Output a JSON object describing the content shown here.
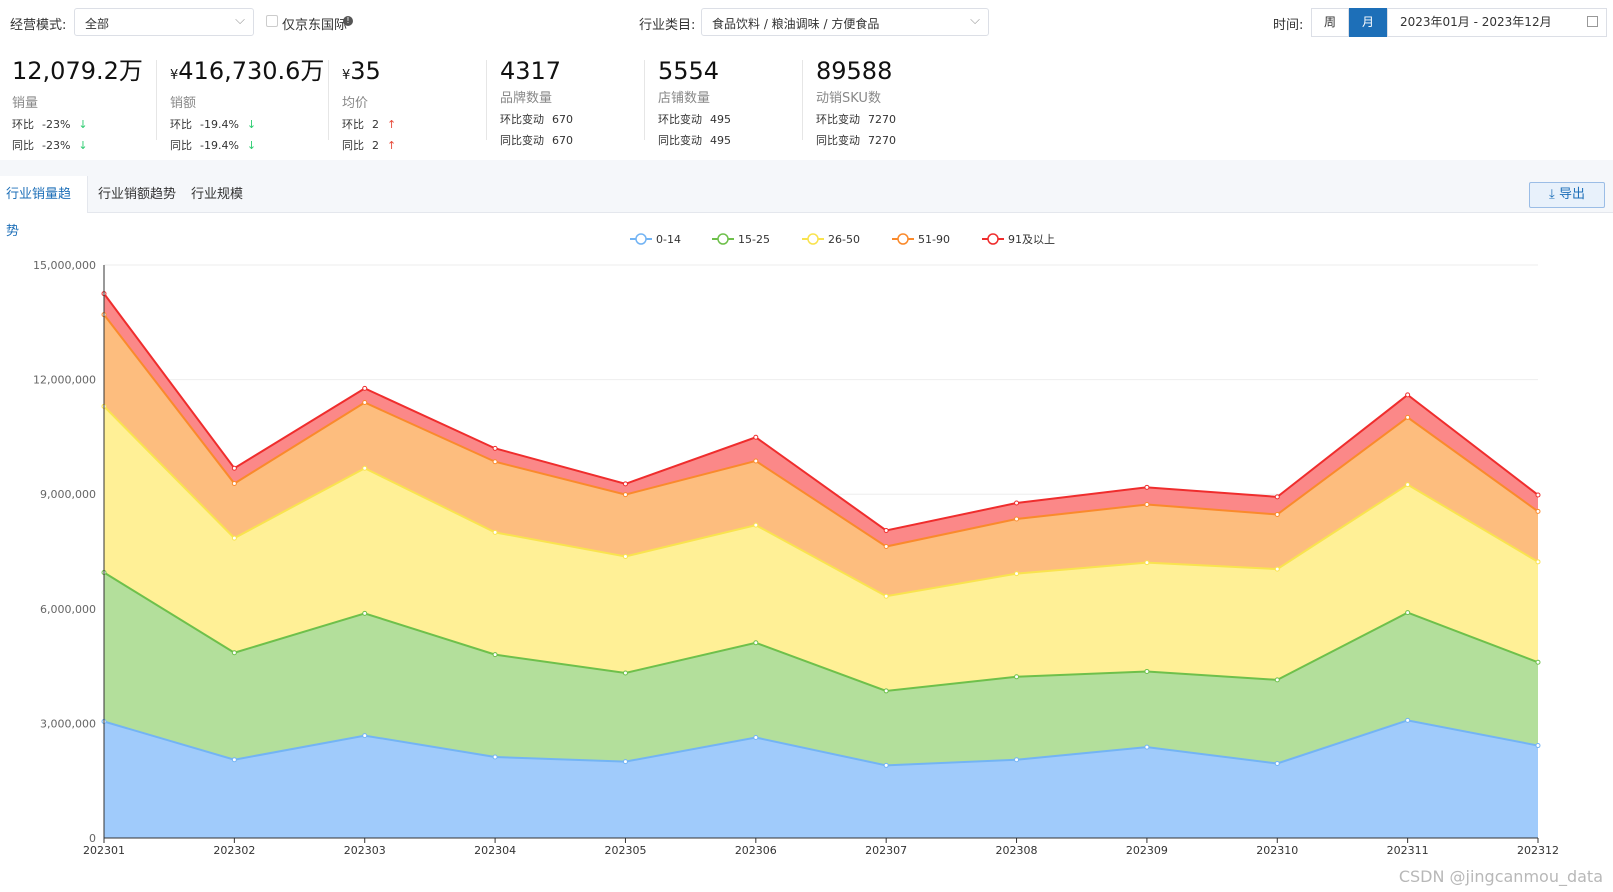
{
  "filters": {
    "mode_label": "经营模式:",
    "mode_value": "全部",
    "checkbox_label": "仅京东国际",
    "industry_label": "行业类目:",
    "industry_value": "食品饮料 / 粮油调味 / 方便食品",
    "time_label": "时间:",
    "week_label": "周",
    "month_label": "月",
    "date_range": "2023年01月 - 2023年12月"
  },
  "kpis": [
    {
      "value": "12,079.2万",
      "yen": "",
      "name": "销量",
      "r1_label": "环比",
      "r1_val": "-23%",
      "r1_dir": "down",
      "r2_label": "同比",
      "r2_val": "-23%",
      "r2_dir": "down"
    },
    {
      "value": "416,730.6万",
      "yen": "¥",
      "name": "销额",
      "r1_label": "环比",
      "r1_val": "-19.4%",
      "r1_dir": "down",
      "r2_label": "同比",
      "r2_val": "-19.4%",
      "r2_dir": "down"
    },
    {
      "value": "35",
      "yen": "¥",
      "name": "均价",
      "r1_label": "环比",
      "r1_val": "2",
      "r1_dir": "up",
      "r2_label": "同比",
      "r2_val": "2",
      "r2_dir": "up"
    },
    {
      "value": "4317",
      "yen": "",
      "name": "品牌数量",
      "r1_label": "环比变动",
      "r1_val": "670",
      "r1_dir": "",
      "r2_label": "同比变动",
      "r2_val": "670",
      "r2_dir": ""
    },
    {
      "value": "5554",
      "yen": "",
      "name": "店铺数量",
      "r1_label": "环比变动",
      "r1_val": "495",
      "r1_dir": "",
      "r2_label": "同比变动",
      "r2_val": "495",
      "r2_dir": ""
    },
    {
      "value": "89588",
      "yen": "",
      "name": "动销SKU数",
      "r1_label": "环比变动",
      "r1_val": "7270",
      "r1_dir": "",
      "r2_label": "同比变动",
      "r2_val": "7270",
      "r2_dir": ""
    }
  ],
  "tabs": [
    "行业销量趋势",
    "行业销额趋势",
    "行业规模"
  ],
  "export_label": "导出",
  "watermark": "CSDN @jingcanmou_data",
  "chart_data": {
    "type": "area",
    "stacked": true,
    "x": [
      "202301",
      "202302",
      "202303",
      "202304",
      "202305",
      "202306",
      "202307",
      "202308",
      "202309",
      "202310",
      "202311",
      "202312"
    ],
    "ylim": [
      0,
      15000000
    ],
    "yticks": [
      "0",
      "3,000,000",
      "6,000,000",
      "9,000,000",
      "12,000,000",
      "15,000,000"
    ],
    "legend_position": "top-center",
    "series": [
      {
        "name": "0-14",
        "color": "#73b4f4",
        "fill": "#a0cbfb",
        "values": [
          3050000,
          2050000,
          2680000,
          2120000,
          2000000,
          2630000,
          1900000,
          2050000,
          2380000,
          1950000,
          3080000,
          2420000
        ]
      },
      {
        "name": "15-25",
        "color": "#6ec04b",
        "fill": "#b3df9b",
        "values": [
          3900000,
          2800000,
          3200000,
          2680000,
          2320000,
          2480000,
          1950000,
          2170000,
          1980000,
          2190000,
          2820000,
          2180000
        ]
      },
      {
        "name": "26-50",
        "color": "#f9e34f",
        "fill": "#fff096",
        "values": [
          4350000,
          3000000,
          3800000,
          3200000,
          3050000,
          3080000,
          2480000,
          2700000,
          2850000,
          2900000,
          3350000,
          2630000
        ]
      },
      {
        "name": "51-90",
        "color": "#fa8a2c",
        "fill": "#fdbd7e",
        "values": [
          2400000,
          1430000,
          1720000,
          1850000,
          1620000,
          1680000,
          1300000,
          1430000,
          1520000,
          1430000,
          1760000,
          1320000
        ]
      },
      {
        "name": "91及以上",
        "color": "#ef2d2d",
        "fill": "#fb8888",
        "values": [
          550000,
          400000,
          370000,
          350000,
          280000,
          620000,
          420000,
          420000,
          450000,
          460000,
          590000,
          430000
        ]
      }
    ]
  }
}
